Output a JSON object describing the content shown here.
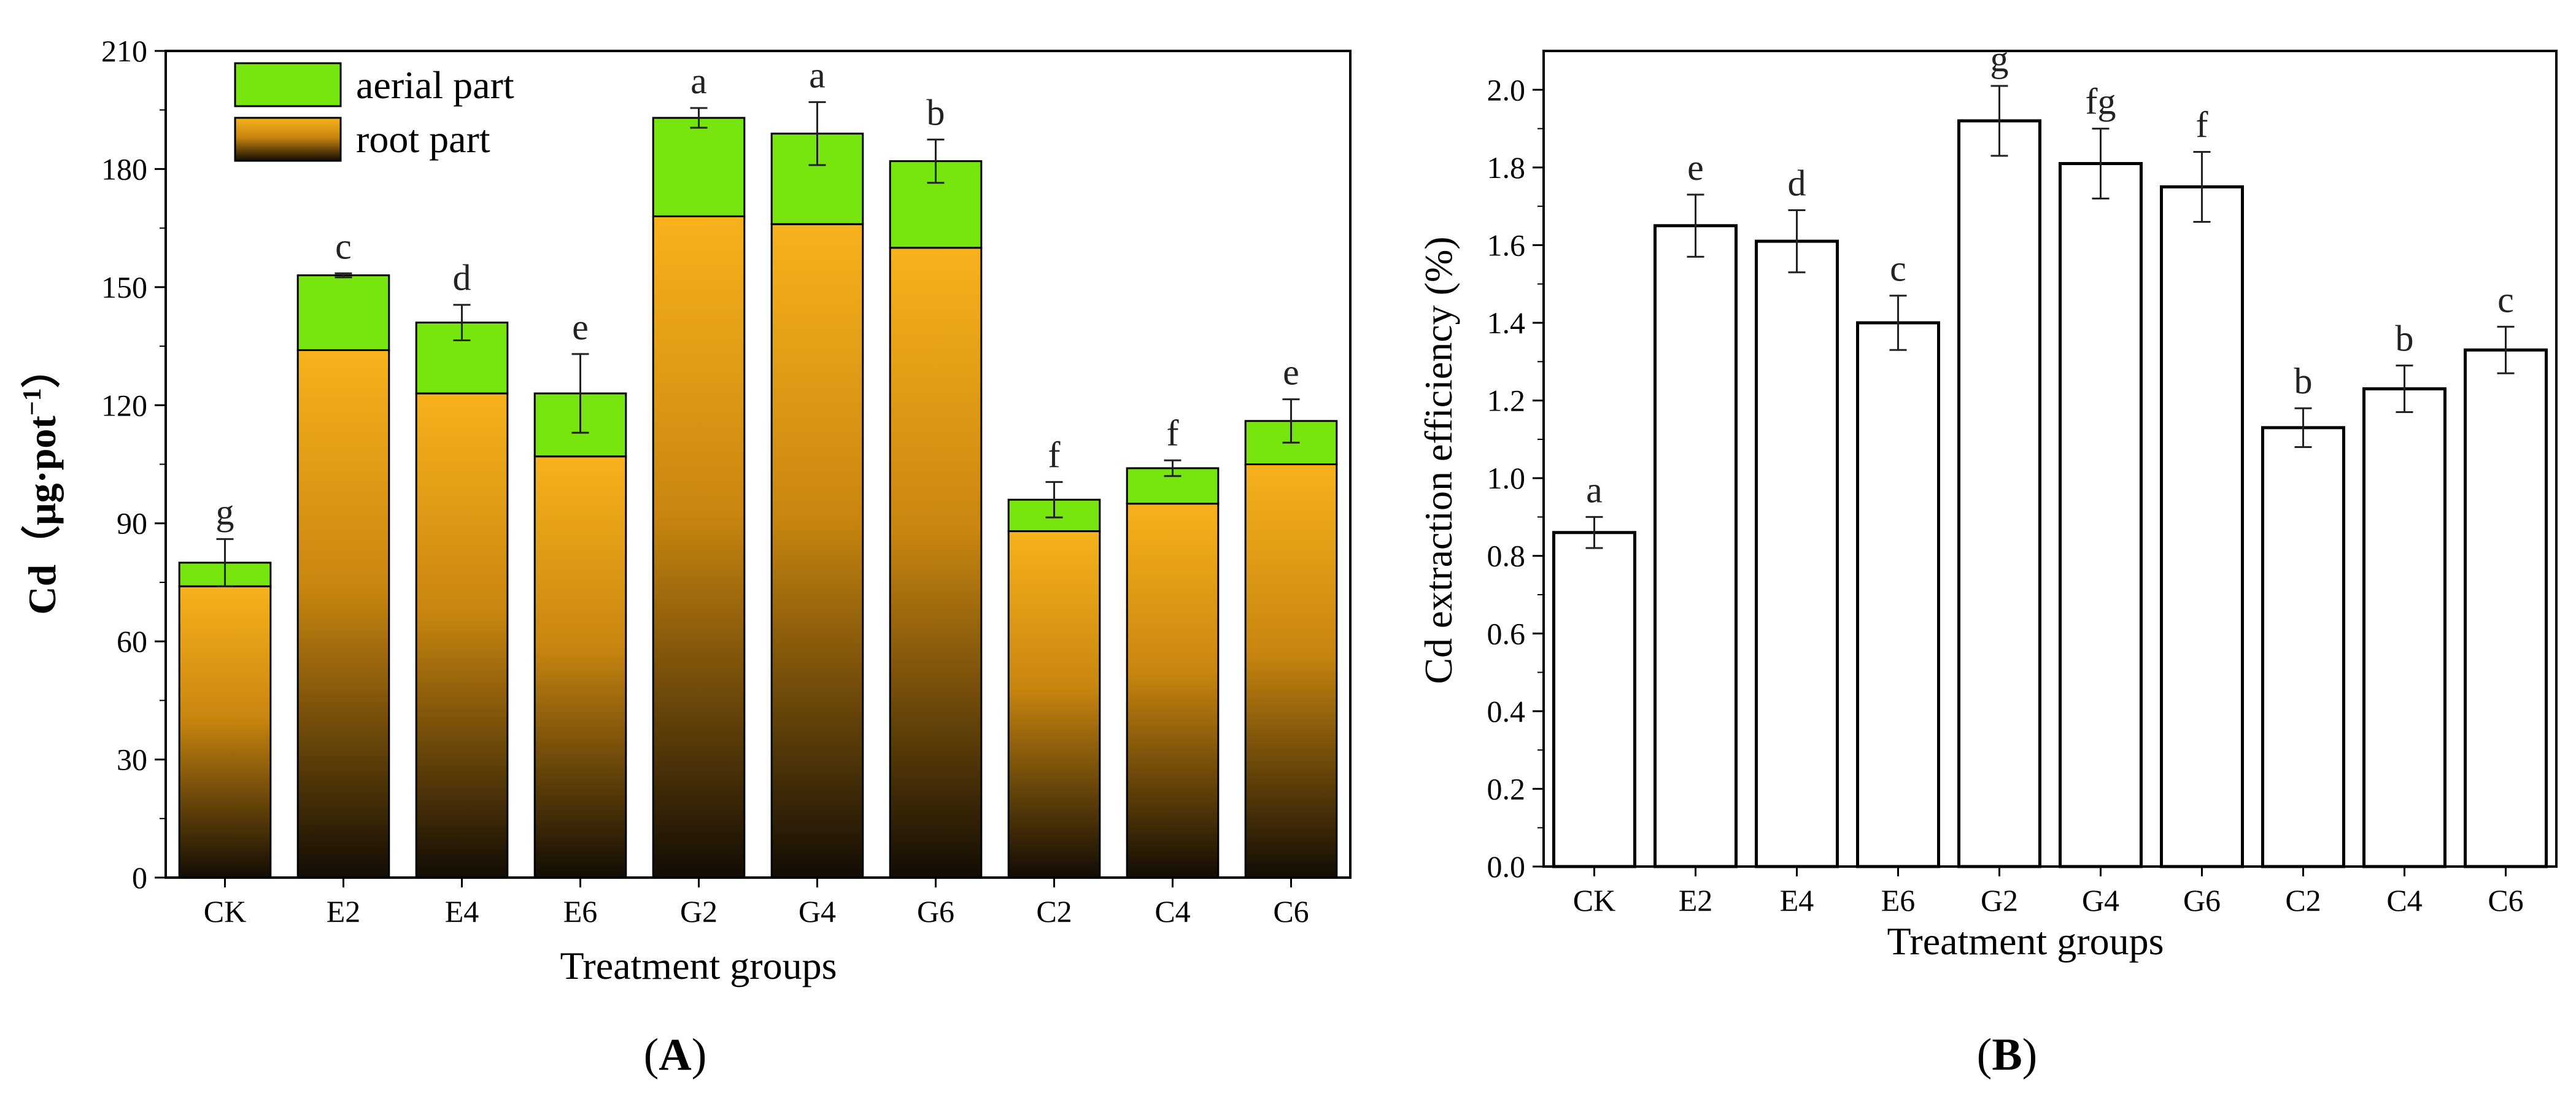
{
  "chart_data": [
    {
      "panel": "(A)",
      "panel_letter": "A",
      "type": "bar",
      "stacked": true,
      "xlabel": "Treatment groups",
      "ylabel": "Cd（μg·pot⁻¹）",
      "ylabel_main": "Cd（",
      "ylabel_unit": "μg·pot",
      "ylabel_sup": "−1",
      "ylabel_close": "）",
      "ylim": [
        0,
        210
      ],
      "yticks": [
        0,
        30,
        60,
        90,
        120,
        150,
        180,
        210
      ],
      "categories": [
        "CK",
        "E2",
        "E4",
        "E6",
        "G2",
        "G4",
        "G6",
        "C2",
        "C4",
        "C6"
      ],
      "series": [
        {
          "name": "root part",
          "color_top": "#f7b21c",
          "color_bottom": "#120c04",
          "values": [
            74,
            134,
            123,
            107,
            168,
            166,
            160,
            88,
            95,
            105
          ]
        },
        {
          "name": "aerial part",
          "color": "#77e60f",
          "values": [
            6,
            19,
            18,
            16,
            25,
            23,
            22,
            8,
            9,
            11
          ]
        }
      ],
      "totals": [
        80,
        153,
        141,
        123,
        193,
        189,
        182,
        96,
        104,
        116
      ],
      "errors": [
        6,
        0.5,
        4.5,
        10,
        2.5,
        8,
        5.5,
        4.5,
        2,
        5.5
      ],
      "significance": [
        "g",
        "c",
        "d",
        "e",
        "a",
        "a",
        "b",
        "f",
        "f",
        "e"
      ],
      "legend": [
        "aerial part",
        "root part"
      ],
      "legend_position": "top-left"
    },
    {
      "panel": "(B)",
      "panel_letter": "B",
      "type": "bar",
      "xlabel": "Treatment groups",
      "ylabel": "Cd extraction efficiency (%)",
      "ylim": [
        0,
        2.1
      ],
      "yticks": [
        "0.0",
        "0.2",
        "0.4",
        "0.6",
        "0.8",
        "1.0",
        "1.2",
        "1.4",
        "1.6",
        "1.8",
        "2.0"
      ],
      "categories": [
        "CK",
        "E2",
        "E4",
        "E6",
        "G2",
        "G4",
        "G6",
        "C2",
        "C4",
        "C6"
      ],
      "values": [
        0.86,
        1.65,
        1.61,
        1.4,
        1.92,
        1.81,
        1.75,
        1.13,
        1.23,
        1.33
      ],
      "errors": [
        0.04,
        0.08,
        0.08,
        0.07,
        0.09,
        0.09,
        0.09,
        0.05,
        0.06,
        0.06
      ],
      "significance": [
        "a",
        "e",
        "d",
        "c",
        "g",
        "fg",
        "f",
        "b",
        "b",
        "c"
      ],
      "bar_fill": "#ffffff",
      "bar_stroke": "#000000"
    }
  ]
}
